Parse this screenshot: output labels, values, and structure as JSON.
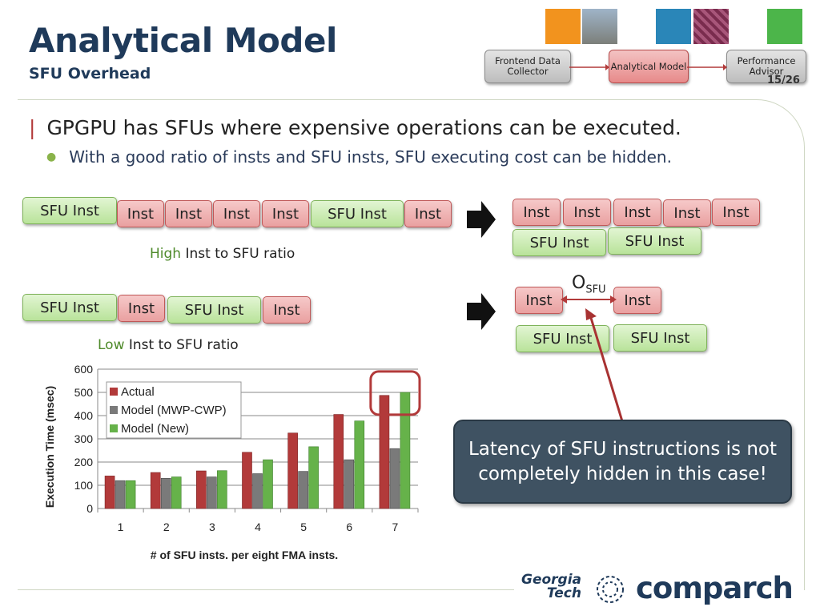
{
  "title": "Analytical Model",
  "subtitle": "SFU Overhead",
  "page_number": "15/26",
  "flow": {
    "frontend": "Frontend Data Collector",
    "model": "Analytical Model",
    "advisor": "Performance Advisor"
  },
  "bullets": {
    "main": "GPGPU has SFUs where expensive operations can be executed.",
    "sub": "With a good ratio of insts and SFU insts, SFU executing cost can be hidden."
  },
  "boxes": {
    "inst": "Inst",
    "sfu": "SFU Inst"
  },
  "labels": {
    "high_word": "High",
    "high_rest": "Inst to SFU ratio",
    "low_word": "Low",
    "low_rest": "Inst to SFU ratio",
    "osfu_main": "O",
    "osfu_sub": "SFU"
  },
  "callout": "Latency of SFU instructions is not completely hidden in this case!",
  "logos": {
    "gt_line1": "Georgia",
    "gt_line2": "Tech",
    "comparch": "comparch"
  },
  "colors": {
    "title": "#1f3a5a",
    "actual": "#b23a3a",
    "model_mwp": "#7a7a7a",
    "model_new": "#66b24a",
    "callout_bg": "#3f5262",
    "highlight": "#b23a3a"
  },
  "chart_data": {
    "type": "bar",
    "categories": [
      "1",
      "2",
      "3",
      "4",
      "5",
      "6",
      "7"
    ],
    "series": [
      {
        "name": "Actual",
        "values": [
          140,
          155,
          162,
          242,
          325,
          405,
          487
        ]
      },
      {
        "name": "Model (MWP-CWP)",
        "values": [
          120,
          130,
          136,
          150,
          160,
          210,
          258
        ]
      },
      {
        "name": "Model (New)",
        "values": [
          120,
          136,
          163,
          210,
          266,
          377,
          500
        ]
      }
    ],
    "xlabel": "# of SFU insts. per eight FMA insts.",
    "ylabel": "Execution Time (msec)",
    "ylim": [
      0,
      600
    ],
    "yticks": [
      "0",
      "100",
      "200",
      "300",
      "400",
      "500",
      "600"
    ],
    "grid": true,
    "legend": "top-left",
    "highlight_category": "7"
  }
}
